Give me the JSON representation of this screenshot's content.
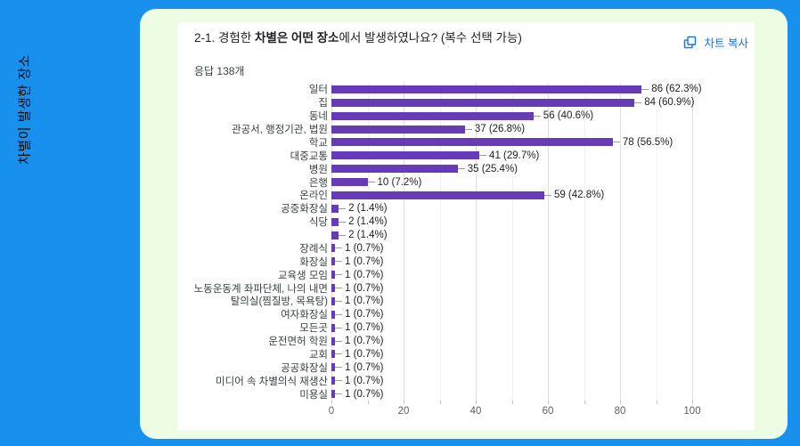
{
  "page": {
    "background_color": "#1890ee",
    "panel_color": "#edfde3",
    "sidebar_label": "차별이 발생한 장소"
  },
  "card": {
    "title_prefix": "2-1. 경험한 ",
    "title_bold": "차별은 어떤 장소",
    "title_suffix": "에서 발생하였나요? (복수 선택 가능)",
    "response_count": "응답 138개",
    "copy_button": {
      "label": "차트 복사",
      "color": "#1a73e8",
      "icon": "copy-icon"
    }
  },
  "chart_data": {
    "type": "bar",
    "orientation": "horizontal",
    "title": "2-1. 경험한 차별은 어떤 장소에서 발생하였나요? (복수 선택 가능)",
    "subtitle": "응답 138개",
    "bar_color": "#673ab7",
    "grid": true,
    "xlim": [
      0,
      100
    ],
    "xticks": [
      0,
      20,
      40,
      60,
      80,
      100
    ],
    "minor_grid_step": 10,
    "categories": [
      "일터",
      "집",
      "동네",
      "관공서, 행정기관, 법원",
      "학교",
      "대중교통",
      "병원",
      "은행",
      "온라인",
      "공중화장실",
      "식당",
      "",
      "장례식",
      "화장실",
      "교육생 모임",
      "노동운동계 좌파단체, 나의 내면",
      "탈의실(찜질방, 목욕탕)",
      "여자화장실",
      "모든곳",
      "운전면허 학원",
      "교회",
      "공공화장실",
      "미디어 속 차별의식 재생산",
      "미용실"
    ],
    "values": [
      86,
      84,
      56,
      37,
      78,
      41,
      35,
      10,
      59,
      2,
      2,
      2,
      1,
      1,
      1,
      1,
      1,
      1,
      1,
      1,
      1,
      1,
      1,
      1
    ],
    "value_labels": [
      "86 (62.3%)",
      "84 (60.9%)",
      "56 (40.6%)",
      "37 (26.8%)",
      "78 (56.5%)",
      "41 (29.7%)",
      "35 (25.4%)",
      "10 (7.2%)",
      "59 (42.8%)",
      "2 (1.4%)",
      "2 (1.4%)",
      "2 (1.4%)",
      "1 (0.7%)",
      "1 (0.7%)",
      "1 (0.7%)",
      "1 (0.7%)",
      "1 (0.7%)",
      "1 (0.7%)",
      "1 (0.7%)",
      "1 (0.7%)",
      "1 (0.7%)",
      "1 (0.7%)",
      "1 (0.7%)",
      "1 (0.7%)"
    ]
  }
}
